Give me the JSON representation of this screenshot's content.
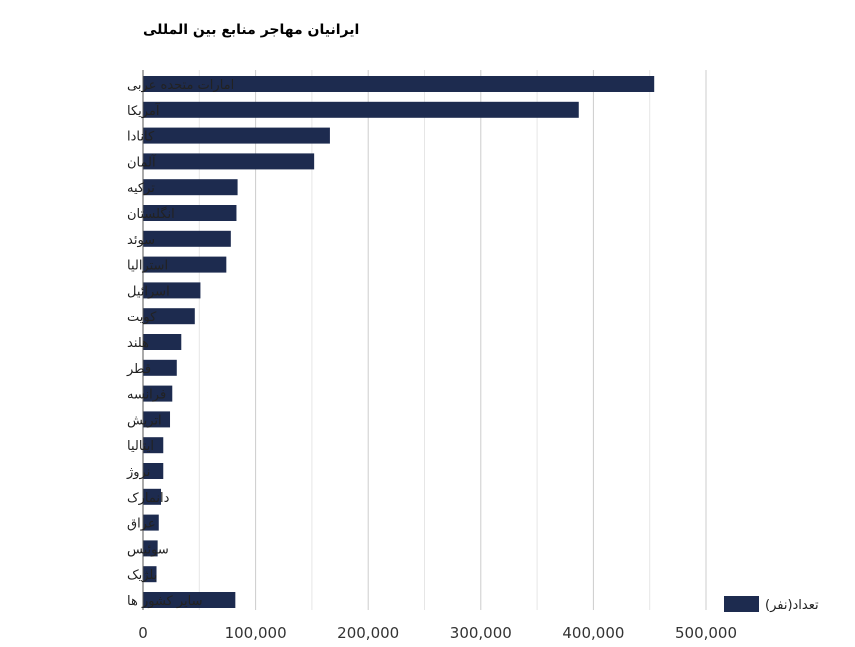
{
  "chart_data": {
    "type": "bar",
    "orientation": "horizontal",
    "title": "ایرانیان مهاجر منابع بین المللی",
    "xlabel": "",
    "ylabel": "",
    "categories": [
      "امارات متحده عربی",
      "آمریکا",
      "کانادا",
      "آلمان",
      "ترکیه",
      "انگلستان",
      "سوئد",
      "استرالیا",
      "اسرائیل",
      "کویت",
      "هلند",
      "قطر",
      "فرانسه",
      "اتریش",
      "ایتالیا",
      "نروژ",
      "دانمارک",
      "عراق",
      "سوئیس",
      "بلژیک",
      "سایر کشور ها"
    ],
    "series": [
      {
        "name": "تعداد(نفر)",
        "values": [
          454000,
          387000,
          166000,
          152000,
          84000,
          83000,
          78000,
          74000,
          51000,
          46000,
          34000,
          30000,
          26000,
          24000,
          18000,
          18000,
          16000,
          14000,
          13000,
          12000,
          82000
        ]
      }
    ],
    "xlim": [
      0,
      500000
    ],
    "xticks": [
      "0",
      "100,000",
      "200,000",
      "300,000",
      "400,000",
      "500,000"
    ],
    "grid": true,
    "legend_position": "bottom-right",
    "colors": {
      "bar": "#1d2b4f",
      "grid": "#cccccc",
      "axis": "#555555"
    }
  }
}
